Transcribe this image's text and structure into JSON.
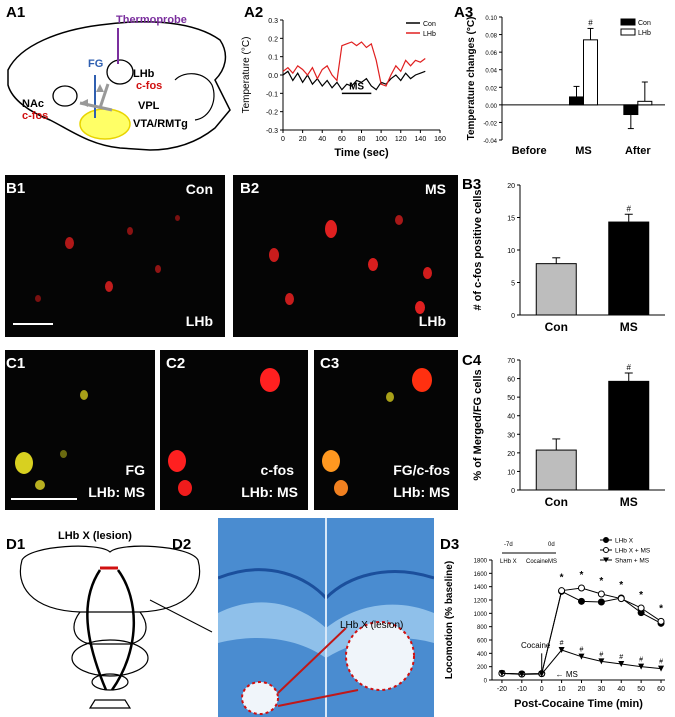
{
  "panel_labels": {
    "a1": "A1",
    "a2": "A2",
    "a3": "A3",
    "b1": "B1",
    "b2": "B2",
    "b3": "B3",
    "c1": "C1",
    "c2": "C2",
    "c3": "C3",
    "c4": "C4",
    "d1": "D1",
    "d2": "D2",
    "d3": "D3"
  },
  "a1": {
    "thermoprobe": "Thermoprobe",
    "fg": "FG",
    "lhb": "LHb",
    "cfos": "c-fos",
    "nac": "NAc",
    "nac_cfos": "c-fos",
    "vpl": "VPL",
    "vta": "VTA/RMTg"
  },
  "b1": {
    "condition": "Con",
    "region": "LHb"
  },
  "b2": {
    "condition": "MS",
    "region": "LHb"
  },
  "c1": {
    "channel": "FG",
    "region": "LHb: MS"
  },
  "c2": {
    "channel": "c-fos",
    "region": "LHb: MS"
  },
  "c3": {
    "channel": "FG/c-fos",
    "region": "LHb: MS"
  },
  "d1": {
    "title": "LHb X (lesion)"
  },
  "d2": {
    "lesion_label": "LHb X (lesion)"
  },
  "colors": {
    "con_line": "#000000",
    "lhb_line": "#e02020",
    "con_bar": "#000000",
    "lhb_bar": "#ffffff",
    "grey_bar": "#bdbdbd",
    "thermo": "#7b2f9e",
    "fg": "#2f5fb0",
    "cfos": "#d01010",
    "highlight": "#ffff66",
    "stain": "#3a7fc8"
  },
  "chart_data": [
    {
      "id": "A2",
      "type": "line",
      "xlabel": "Time (sec)",
      "ylabel": "Temperature (°C)",
      "xlim": [
        0,
        160
      ],
      "ylim": [
        -0.3,
        0.3
      ],
      "xticks": [
        0,
        20,
        40,
        60,
        80,
        100,
        120,
        140,
        160
      ],
      "yticks": [
        -0.3,
        -0.2,
        -0.1,
        0.0,
        0.1,
        0.2,
        0.3
      ],
      "ytick_labels": [
        "-0.3",
        "-0.2",
        "-0.1",
        "0.0",
        "0.1",
        "0.2",
        "0.3"
      ],
      "annotation": "MS",
      "ms_period": [
        60,
        90
      ],
      "series": [
        {
          "name": "Con",
          "x": [
            0,
            5,
            10,
            15,
            20,
            25,
            30,
            35,
            40,
            45,
            50,
            55,
            60,
            65,
            70,
            75,
            80,
            85,
            90,
            95,
            100,
            105,
            110,
            115,
            120,
            125,
            130,
            135,
            140,
            145
          ],
          "values": [
            0.0,
            0.02,
            -0.03,
            0.01,
            -0.04,
            0.0,
            -0.05,
            -0.02,
            -0.06,
            -0.03,
            -0.07,
            -0.04,
            -0.08,
            -0.05,
            -0.06,
            -0.03,
            -0.04,
            -0.02,
            -0.06,
            -0.08,
            -0.04,
            -0.05,
            -0.02,
            0.0,
            -0.03,
            0.01,
            -0.02,
            0.0,
            0.01,
            0.02
          ]
        },
        {
          "name": "LHb",
          "x": [
            0,
            5,
            10,
            15,
            20,
            25,
            30,
            35,
            40,
            45,
            50,
            55,
            60,
            65,
            70,
            75,
            80,
            85,
            90,
            95,
            100,
            105,
            110,
            115,
            120,
            125,
            130,
            135,
            140,
            145
          ],
          "values": [
            0.02,
            0.04,
            0.01,
            0.05,
            0.03,
            0.0,
            0.04,
            -0.02,
            0.03,
            0.05,
            0.0,
            -0.03,
            0.16,
            0.17,
            0.18,
            0.16,
            0.18,
            0.15,
            0.17,
            0.08,
            -0.05,
            -0.06,
            0.0,
            0.05,
            0.02,
            0.08,
            0.05,
            0.08,
            0.07,
            0.09
          ]
        }
      ]
    },
    {
      "id": "A3",
      "type": "bar",
      "ylabel": "Temperature changes (°C)",
      "categories": [
        "Before",
        "MS",
        "After"
      ],
      "ylim": [
        -0.04,
        0.1
      ],
      "yticks": [
        -0.04,
        -0.02,
        0.0,
        0.02,
        0.04,
        0.06,
        0.08,
        0.1
      ],
      "ytick_labels": [
        "-0.04",
        "-0.02",
        "0.00",
        "0.02",
        "0.04",
        "0.06",
        "0.08",
        "0.10"
      ],
      "series": [
        {
          "name": "Con",
          "values": [
            0.0,
            0.009,
            -0.011
          ],
          "errors": [
            0.0,
            0.012,
            0.016
          ]
        },
        {
          "name": "LHb",
          "values": [
            0.0,
            0.074,
            0.004
          ],
          "errors": [
            0.0,
            0.013,
            0.022
          ]
        }
      ],
      "markers": [
        "",
        "#",
        ""
      ]
    },
    {
      "id": "B3",
      "type": "bar",
      "ylabel": "# of c-fos positive cells",
      "categories": [
        "Con",
        "MS"
      ],
      "ylim": [
        0,
        20
      ],
      "yticks": [
        0,
        5,
        10,
        15,
        20
      ],
      "ytick_labels": [
        "0",
        "5",
        "10",
        "15",
        "20"
      ],
      "values": [
        7.9,
        14.3
      ],
      "errors": [
        0.9,
        1.2
      ],
      "markers": [
        "",
        "#"
      ]
    },
    {
      "id": "C4",
      "type": "bar",
      "ylabel": "% of Merged/FG cells",
      "categories": [
        "Con",
        "MS"
      ],
      "ylim": [
        0,
        70
      ],
      "yticks": [
        0,
        10,
        20,
        30,
        40,
        50,
        60,
        70
      ],
      "ytick_labels": [
        "0",
        "10",
        "20",
        "30",
        "40",
        "50",
        "60",
        "70"
      ],
      "values": [
        21.5,
        58.5
      ],
      "errors": [
        6.0,
        4.5
      ],
      "markers": [
        "",
        "#"
      ]
    },
    {
      "id": "D3",
      "type": "line",
      "xlabel": "Post-Cocaine Time (min)",
      "ylabel": "Locomotion (% baseline)",
      "xlim": [
        -25,
        62
      ],
      "ylim": [
        0,
        1800
      ],
      "xticks": [
        -20,
        -10,
        0,
        10,
        20,
        30,
        40,
        50,
        60
      ],
      "yticks": [
        0,
        200,
        400,
        600,
        800,
        1000,
        1200,
        1400,
        1600,
        1800
      ],
      "ytick_labels": [
        "0",
        "200",
        "400",
        "600",
        "800",
        "1000",
        "1200",
        "1400",
        "1600",
        "1800"
      ],
      "x": [
        -20,
        -10,
        0,
        10,
        20,
        30,
        40,
        50,
        60
      ],
      "series": [
        {
          "name": "LHb X",
          "values": [
            100,
            90,
            95,
            1330,
            1180,
            1170,
            1230,
            1010,
            850
          ]
        },
        {
          "name": "LHb X + MS",
          "values": [
            100,
            90,
            95,
            1340,
            1380,
            1290,
            1220,
            1080,
            880
          ]
        },
        {
          "name": "Sham + MS",
          "values": [
            100,
            85,
            90,
            450,
            350,
            280,
            240,
            200,
            170
          ]
        }
      ],
      "markers_top": [
        "",
        "",
        "",
        "*",
        "*",
        "*",
        "*",
        "*",
        "*"
      ],
      "markers_bottom": [
        "",
        "",
        "",
        "#",
        "#",
        "#",
        "#",
        "#",
        "#"
      ],
      "annotations": {
        "cocaine": "Cocaine",
        "ms": "MS"
      },
      "timeline": {
        "t1": "-7d",
        "t2": "0d",
        "e1": "LHb X",
        "e2": "Cocaine",
        "e3": "MS"
      }
    }
  ]
}
